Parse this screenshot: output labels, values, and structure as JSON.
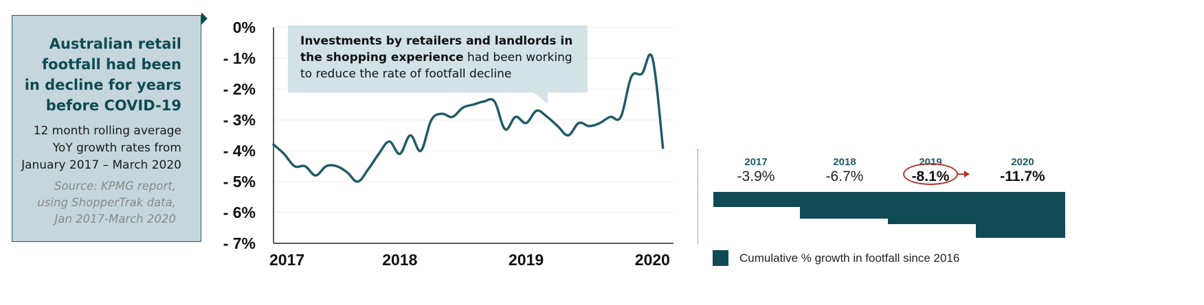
{
  "info_panel": {
    "title_lines": [
      "Australian retail",
      "footfall had been",
      "in decline for years",
      "before COVID-19"
    ],
    "subtitle_lines": [
      "12 month rolling average",
      "YoY growth rates from",
      "January 2017 – March 2020"
    ],
    "source_lines": [
      "Source: KPMG report,",
      "using ShopperTrak data,",
      "Jan 2017-March 2020"
    ],
    "bg_color": "#c5d7dc",
    "title_color": "#0f4a55"
  },
  "callout": {
    "bold_text": "Investments by retailers and landlords in the shopping experience",
    "normal_text": " had been working to reduce the rate of footfall decline"
  },
  "cumulative": {
    "years": [
      {
        "year": "2017",
        "value_label": "-3.9%",
        "value": -3.9
      },
      {
        "year": "2018",
        "value_label": "-6.7%",
        "value": -6.7
      },
      {
        "year": "2019",
        "value_label": "-8.1%",
        "value": -8.1
      },
      {
        "year": "2020",
        "value_label": "-11.7%",
        "value": -11.7
      }
    ],
    "legend_label": "Cumulative % growth in footfall since 2016",
    "bar_color": "#0f4a55",
    "highlight_color": "#b8322a"
  },
  "chart_data": [
    {
      "type": "line",
      "y_tick_labels": [
        "0%",
        "- 1%",
        "- 2%",
        "- 3%",
        "- 4%",
        "- 5%",
        "- 6%",
        "- 7%"
      ],
      "x_tick_labels": [
        "2017",
        "2018",
        "2019",
        "2020"
      ],
      "ylim": [
        -7,
        0
      ],
      "xlim": [
        0,
        38
      ],
      "x_ticks": [
        0,
        12,
        24,
        36
      ],
      "grid": true,
      "line_color": "#1f5b66",
      "x": [
        0,
        1,
        2,
        3,
        4,
        5,
        6,
        7,
        8,
        9,
        10,
        11,
        12,
        13,
        14,
        15,
        16,
        17,
        18,
        19,
        20,
        21,
        22,
        23,
        24,
        25,
        26,
        27,
        28,
        29,
        30,
        31,
        32,
        33,
        34,
        35,
        36,
        37
      ],
      "y": [
        -3.8,
        -4.1,
        -4.5,
        -4.5,
        -4.8,
        -4.5,
        -4.5,
        -4.7,
        -5.0,
        -4.6,
        -4.1,
        -3.7,
        -4.1,
        -3.5,
        -4.0,
        -3.0,
        -2.8,
        -2.9,
        -2.6,
        -2.5,
        -2.4,
        -2.4,
        -3.3,
        -2.9,
        -3.1,
        -2.7,
        -2.9,
        -3.2,
        -3.5,
        -3.1,
        -3.2,
        -3.1,
        -2.9,
        -2.9,
        -1.6,
        -1.5,
        -1.0,
        -3.9
      ]
    },
    {
      "type": "bar",
      "categories": [
        "2017",
        "2018",
        "2019",
        "2020"
      ],
      "values": [
        -3.9,
        -6.7,
        -8.1,
        -11.7
      ]
    }
  ]
}
